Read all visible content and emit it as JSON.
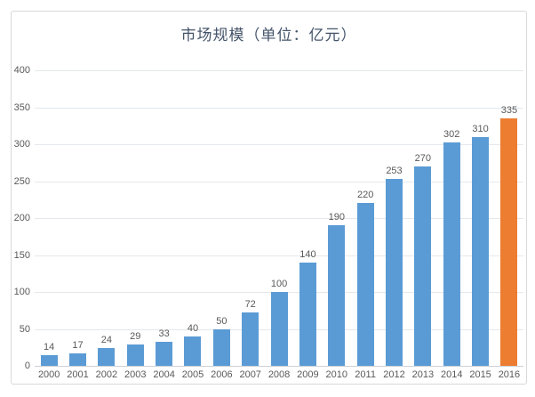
{
  "chart_data": {
    "type": "bar",
    "title": "市场规模（单位：亿元）",
    "categories": [
      "2000",
      "2001",
      "2002",
      "2003",
      "2004",
      "2005",
      "2006",
      "2007",
      "2008",
      "2009",
      "2010",
      "2011",
      "2012",
      "2013",
      "2014",
      "2015",
      "2016"
    ],
    "values": [
      14,
      17,
      24,
      29,
      33,
      40,
      50,
      72,
      100,
      140,
      190,
      220,
      253,
      270,
      302,
      310,
      335
    ],
    "xlabel": "",
    "ylabel": "",
    "ylim": [
      0,
      400
    ],
    "ytick_step": 50,
    "grid": true,
    "legend_position": "none",
    "bar_color": "#5b9bd5",
    "highlight_color": "#ed7d31",
    "highlight_index": 16,
    "title_color": "#44546a",
    "axis_text_color": "#595959"
  }
}
